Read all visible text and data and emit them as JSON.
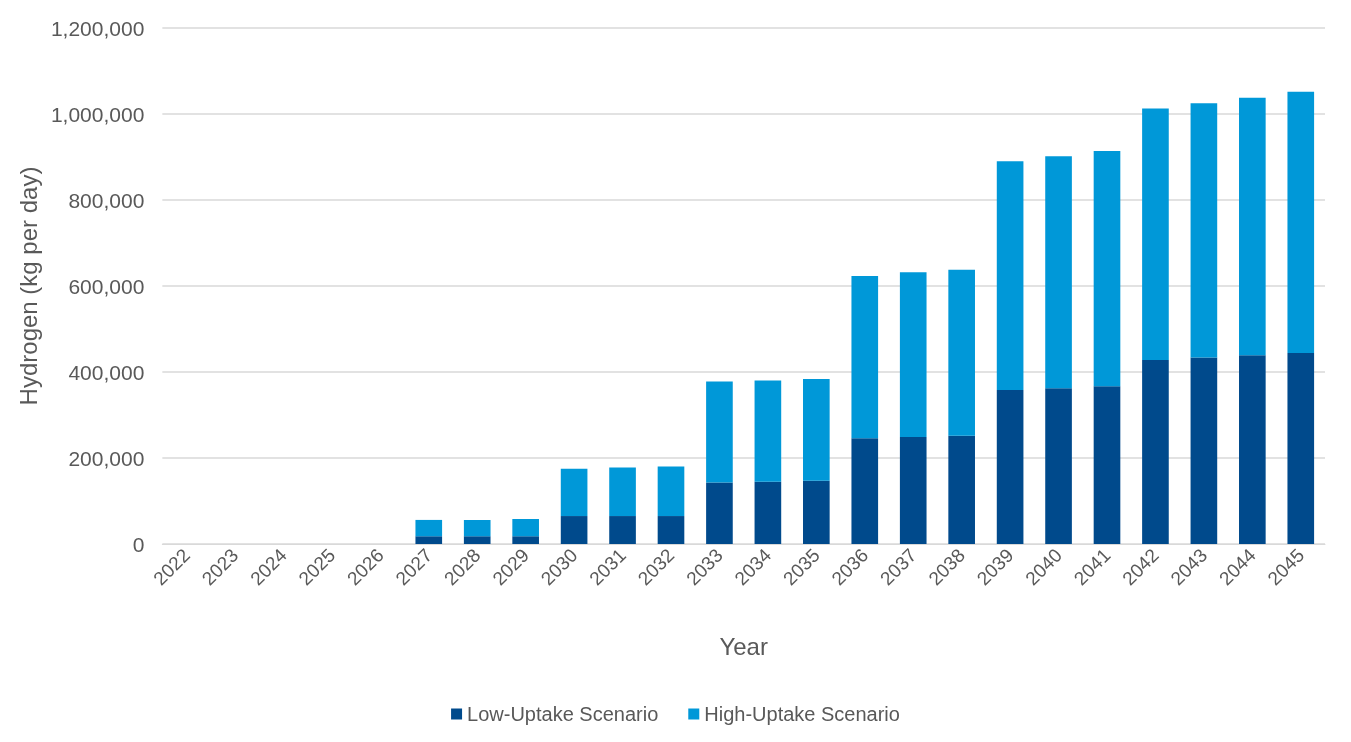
{
  "chart_data": {
    "type": "bar",
    "stacked": true,
    "xlabel": "Year",
    "ylabel": "Hydrogen (kg per day)",
    "categories": [
      "2022",
      "2023",
      "2024",
      "2025",
      "2026",
      "2027",
      "2028",
      "2029",
      "2030",
      "2031",
      "2032",
      "2033",
      "2034",
      "2035",
      "2036",
      "2037",
      "2038",
      "2039",
      "2040",
      "2041",
      "2042",
      "2043",
      "2044",
      "2045"
    ],
    "series": [
      {
        "name": "Low-Uptake Scenario",
        "color": "#004a8c",
        "values": [
          0,
          0,
          0,
          0,
          0,
          18000,
          18000,
          18000,
          65000,
          65000,
          65000,
          143000,
          145000,
          147000,
          246000,
          249000,
          252000,
          358000,
          362000,
          367000,
          428000,
          434000,
          439000,
          444000
        ]
      },
      {
        "name": "High-Uptake Scenario",
        "color": "#0098d8",
        "values": [
          0,
          0,
          0,
          0,
          0,
          38000,
          38000,
          40000,
          110000,
          113000,
          115000,
          235000,
          235000,
          237000,
          377000,
          383000,
          386000,
          532000,
          540000,
          547000,
          585000,
          591000,
          599000,
          608000
        ]
      }
    ],
    "ylim": [
      0,
      1200000
    ],
    "yticks": [
      0,
      {
        "value": 200000,
        "label": "200,000"
      },
      {
        "value": 400000,
        "label": "400,000"
      },
      {
        "value": 600000,
        "label": "600,000"
      },
      {
        "value": 800000,
        "label": "800,000"
      },
      {
        "value": 1000000,
        "label": "1,000,000"
      },
      {
        "value": 1200000,
        "label": "1,200,000"
      }
    ],
    "grid": "y",
    "legend": "bottom"
  }
}
